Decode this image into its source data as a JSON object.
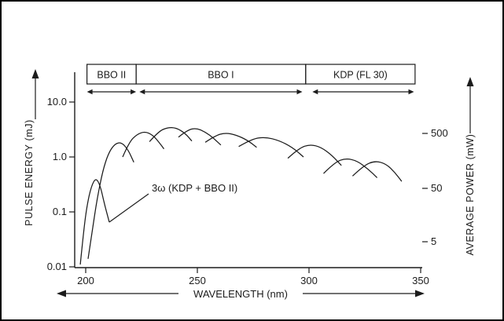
{
  "chart_data": {
    "type": "line",
    "title": "",
    "xlabel": "WAVELENGTH (nm)",
    "ylabel_left": "PULSE ENERGY (mJ)",
    "ylabel_right": "AVERAGE POWER (mW)",
    "x_scale": "linear",
    "y_scale": "log",
    "xlim_nm": [
      195,
      350
    ],
    "ylim_left_mJ": [
      0.01,
      10.0
    ],
    "x_ticks": [
      "200",
      "250",
      "300",
      "350"
    ],
    "y_ticks_left": [
      "10.0",
      "1.0",
      "0.1",
      "0.01"
    ],
    "y_ticks_right": [
      "500",
      "50",
      "5"
    ],
    "legend": "none",
    "grid": false,
    "annotation": {
      "text": "3ω (KDP + BBO II)",
      "points_to_nm": 210,
      "points_to_mJ": 0.065
    },
    "regions": [
      {
        "label": "BBO II",
        "box_nm": [
          200.5,
          222.5
        ],
        "arrow_nm": [
          200.5,
          222.5
        ]
      },
      {
        "label": "BBO I",
        "box_nm": [
          222.5,
          298.5
        ],
        "arrow_nm": [
          224.0,
          297.0
        ]
      },
      {
        "label": "KDP (FL 30)",
        "box_nm": [
          298.5,
          347.5
        ],
        "arrow_nm": [
          301.5,
          347.0
        ]
      }
    ],
    "series": [
      {
        "name": "3omega-kdp-bbo2",
        "points_nm_mJ": [
          [
            197.5,
            0.011
          ],
          [
            199,
            0.045
          ],
          [
            200.5,
            0.13
          ],
          [
            202.5,
            0.3
          ],
          [
            204.5,
            0.42
          ],
          [
            206.5,
            0.3
          ],
          [
            208.5,
            0.13
          ],
          [
            210.5,
            0.065
          ]
        ]
      },
      {
        "name": "bbo2",
        "points_nm_mJ": [
          [
            201,
            0.014
          ],
          [
            203,
            0.05
          ],
          [
            205,
            0.17
          ],
          [
            207.5,
            0.55
          ],
          [
            210,
            1.15
          ],
          [
            213,
            1.75
          ],
          [
            216,
            1.85
          ],
          [
            219,
            1.35
          ],
          [
            221.5,
            0.8
          ]
        ]
      },
      {
        "name": "bbo1-a",
        "points_nm_mJ": [
          [
            216.5,
            1.0
          ],
          [
            219.5,
            1.9
          ],
          [
            223,
            2.6
          ],
          [
            226.5,
            2.9
          ],
          [
            230,
            2.5
          ],
          [
            233,
            1.8
          ],
          [
            235,
            1.4
          ]
        ]
      },
      {
        "name": "bbo1-b",
        "points_nm_mJ": [
          [
            228.5,
            1.9
          ],
          [
            232.5,
            2.9
          ],
          [
            236.5,
            3.45
          ],
          [
            240.5,
            3.4
          ],
          [
            244.5,
            2.7
          ],
          [
            247.5,
            1.95
          ]
        ]
      },
      {
        "name": "bbo1-c",
        "points_nm_mJ": [
          [
            241.5,
            2.3
          ],
          [
            245.5,
            3.1
          ],
          [
            249.5,
            3.35
          ],
          [
            253.5,
            2.85
          ],
          [
            257.5,
            2.15
          ],
          [
            260.5,
            1.65
          ]
        ]
      },
      {
        "name": "bbo1-d",
        "points_nm_mJ": [
          [
            253.5,
            1.85
          ],
          [
            258,
            2.45
          ],
          [
            262.5,
            2.75
          ],
          [
            267.5,
            2.5
          ],
          [
            272.5,
            2.0
          ],
          [
            276.5,
            1.5
          ]
        ]
      },
      {
        "name": "bbo1-e",
        "points_nm_mJ": [
          [
            268.5,
            1.55
          ],
          [
            274.5,
            2.15
          ],
          [
            280.5,
            2.3
          ],
          [
            286.5,
            2.0
          ],
          [
            292.5,
            1.5
          ],
          [
            297.5,
            1.0
          ]
        ]
      },
      {
        "name": "kdp-a",
        "points_nm_mJ": [
          [
            290.5,
            0.95
          ],
          [
            295.5,
            1.45
          ],
          [
            300.5,
            1.7
          ],
          [
            305.5,
            1.5
          ],
          [
            310.5,
            1.05
          ],
          [
            314.5,
            0.7
          ]
        ]
      },
      {
        "name": "kdp-b",
        "points_nm_mJ": [
          [
            306.5,
            0.5
          ],
          [
            311.5,
            0.8
          ],
          [
            316.5,
            0.95
          ],
          [
            321.5,
            0.85
          ],
          [
            326.5,
            0.6
          ],
          [
            330.5,
            0.42
          ]
        ]
      },
      {
        "name": "kdp-c",
        "points_nm_mJ": [
          [
            319.5,
            0.45
          ],
          [
            324.5,
            0.7
          ],
          [
            329.5,
            0.85
          ],
          [
            334.5,
            0.75
          ],
          [
            338.5,
            0.52
          ],
          [
            341.5,
            0.36
          ]
        ]
      }
    ]
  }
}
